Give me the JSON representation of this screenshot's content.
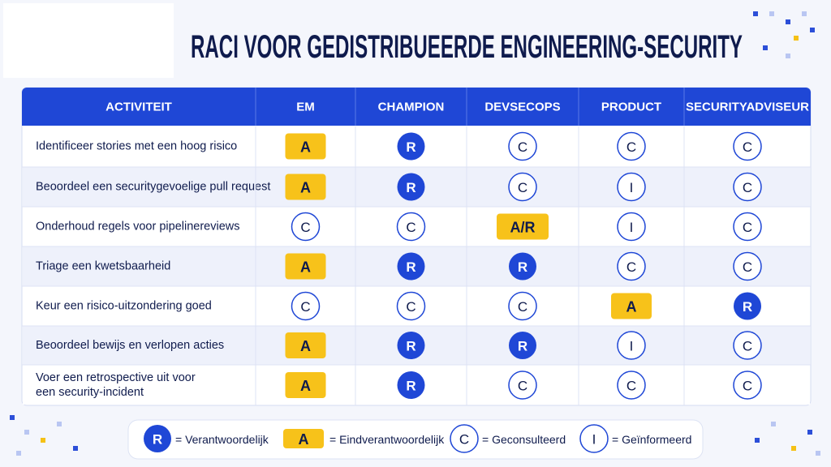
{
  "title": "RACI VOOR GEDISTRIBUEERDE ENGINEERING-SECURITY",
  "table": {
    "headers": [
      "ACTIVITEIT",
      "EM",
      "CHAMPION",
      "DEVSECOPS",
      "PRODUCT",
      "SECURITYADVISEUR"
    ],
    "rows": [
      [
        [
          "Identificeer stories met een hoog risico"
        ],
        "A",
        "R",
        "C",
        "C",
        "C"
      ],
      [
        [
          "Beoordeel een securitygevoelige pull request"
        ],
        "A",
        "R",
        "C",
        "I",
        "C"
      ],
      [
        [
          "Onderhoud regels voor pipelinereviews"
        ],
        "C",
        "C",
        "A/R",
        "I",
        "C"
      ],
      [
        [
          "Triage een kwetsbaarheid"
        ],
        "A",
        "R",
        "R",
        "C",
        "C"
      ],
      [
        [
          "Keur een risico-uitzondering goed"
        ],
        "C",
        "C",
        "C",
        "A",
        "R"
      ],
      [
        [
          "Beoordeel bewijs en verlopen acties"
        ],
        "A",
        "R",
        "R",
        "I",
        "C"
      ],
      [
        [
          "Voer een retrospective uit voor",
          "een security-incident"
        ],
        "A",
        "R",
        "C",
        "C",
        "C"
      ]
    ]
  },
  "legend": [
    {
      "symbol": "R",
      "label": "= Verantwoordelijk"
    },
    {
      "symbol": "A",
      "label": "= Eindverantwoordelijk"
    },
    {
      "symbol": "C",
      "label": "= Geconsulteerd"
    },
    {
      "symbol": "I",
      "label": "= Geïnformeerd"
    }
  ]
}
